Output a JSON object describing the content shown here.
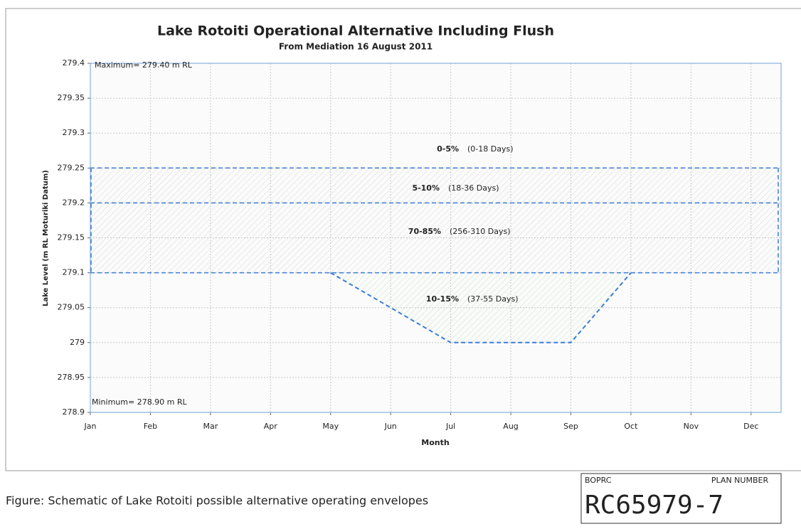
{
  "chart_data": {
    "type": "line",
    "title": "Lake Rotoiti Operational Alternative Including Flush",
    "subtitle": "From Mediation 16 August 2011",
    "y_label": "Lake Level  (m RL Moturiki Datum)",
    "x_label": "Month",
    "categories": [
      "Jan",
      "Feb",
      "Mar",
      "Apr",
      "May",
      "Jun",
      "Jul",
      "Aug",
      "Sep",
      "Oct",
      "Nov",
      "Dec"
    ],
    "ylim": [
      278.9,
      279.4
    ],
    "yticks": [
      278.9,
      278.95,
      279,
      279.05,
      279.1,
      279.15,
      279.2,
      279.25,
      279.3,
      279.35,
      279.4
    ],
    "grid": true,
    "color": "#3b7dd8",
    "limit_lines": [
      279.25,
      279.2,
      279.1
    ],
    "envelope": {
      "x": [
        "May",
        "Jul",
        "Sep",
        "Oct"
      ],
      "values": [
        279.1,
        279,
        279,
        279.1
      ]
    },
    "annotations": {
      "maximum": "Maximum= 279.40 m RL",
      "minimum": "Minimum= 278.90 m RL"
    },
    "bands": [
      {
        "range": "0-5%",
        "days": "(0-18 Days)"
      },
      {
        "range": "5-10%",
        "days": "(18-36 Days)"
      },
      {
        "range": "70-85%",
        "days": "(256-310 Days)"
      },
      {
        "range": "10-15%",
        "days": "(37-55 Days)"
      }
    ]
  },
  "caption": "Figure:  Schematic of Lake Rotoiti possible alternative operating envelopes",
  "stamp": {
    "org": "BOPRC",
    "label": "PLAN NUMBER",
    "number": "RC65979-7"
  }
}
